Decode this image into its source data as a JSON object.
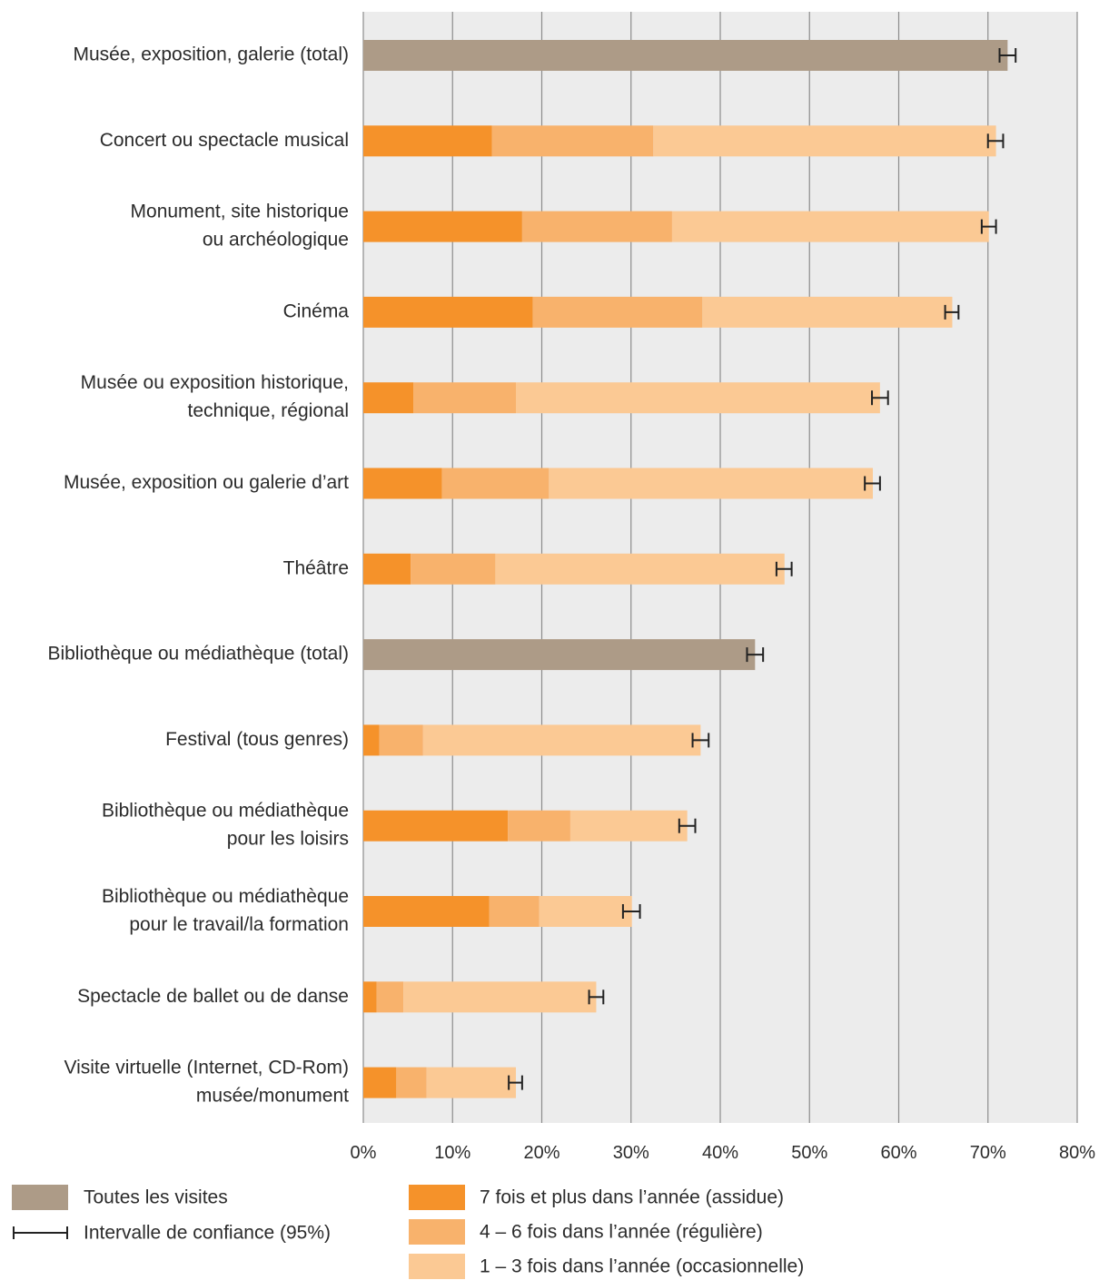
{
  "chart_data": {
    "type": "bar",
    "orientation": "horizontal",
    "stacked": true,
    "xlim": [
      0,
      80
    ],
    "x_unit": "%",
    "x_ticks": [
      "0%",
      "10%",
      "20%",
      "30%",
      "40%",
      "50%",
      "60%",
      "70%",
      "80%"
    ],
    "grid": true,
    "colors": {
      "total": "#ad9b87",
      "assidue": "#f5922a",
      "reguliere": "#f8b26c",
      "occasionnelle": "#fbc994",
      "plot_bg": "#ececec",
      "grid": "#8c8c8c",
      "error_bar": "#222222"
    },
    "categories": [
      {
        "label_lines": [
          "Musée, exposition, galerie (total)"
        ],
        "total": 72.2,
        "ci": [
          71.3,
          73.1
        ]
      },
      {
        "label_lines": [
          "Concert ou spectacle musical"
        ],
        "segments": [
          14.4,
          18.1,
          38.4
        ],
        "ci": [
          70.0,
          71.7
        ]
      },
      {
        "label_lines": [
          "Monument, site historique",
          "ou archéologique"
        ],
        "segments": [
          17.8,
          16.8,
          35.5
        ],
        "ci": [
          69.3,
          70.9
        ]
      },
      {
        "label_lines": [
          "Cinéma"
        ],
        "segments": [
          19.0,
          19.0,
          28.0
        ],
        "ci": [
          65.2,
          66.7
        ]
      },
      {
        "label_lines": [
          "Musée ou exposition historique,",
          "technique, régional"
        ],
        "segments": [
          5.6,
          11.5,
          40.8
        ],
        "ci": [
          57.0,
          58.8
        ]
      },
      {
        "label_lines": [
          "Musée, exposition ou galerie d’art"
        ],
        "segments": [
          8.8,
          12.0,
          36.3
        ],
        "ci": [
          56.2,
          57.9
        ]
      },
      {
        "label_lines": [
          "Théâtre"
        ],
        "segments": [
          5.3,
          9.5,
          32.4
        ],
        "ci": [
          46.3,
          48.0
        ]
      },
      {
        "label_lines": [
          "Bibliothèque ou médiathèque (total)"
        ],
        "total": 43.9,
        "ci": [
          43.0,
          44.8
        ]
      },
      {
        "label_lines": [
          "Festival (tous genres)"
        ],
        "segments": [
          1.8,
          4.9,
          31.1
        ],
        "ci": [
          36.9,
          38.7
        ]
      },
      {
        "label_lines": [
          "Bibliothèque ou médiathèque",
          "pour les loisirs"
        ],
        "segments": [
          16.2,
          7.0,
          13.1
        ],
        "ci": [
          35.4,
          37.2
        ]
      },
      {
        "label_lines": [
          "Bibliothèque ou médiathèque",
          "pour le travail/la formation"
        ],
        "segments": [
          14.1,
          5.6,
          10.4
        ],
        "ci": [
          29.1,
          31.0
        ]
      },
      {
        "label_lines": [
          "Spectacle de ballet ou de danse"
        ],
        "segments": [
          1.5,
          3.0,
          21.6
        ],
        "ci": [
          25.3,
          26.9
        ]
      },
      {
        "label_lines": [
          "Visite virtuelle (Internet, CD-Rom)",
          "musée/monument"
        ],
        "segments": [
          3.7,
          3.4,
          10.0
        ],
        "ci": [
          16.3,
          17.8
        ]
      }
    ],
    "legend": {
      "placement": "bottom",
      "total_label": "Toutes les visites",
      "ci_label": "Intervalle de confiance (95%)",
      "series_labels": [
        "7 fois et plus dans l’année (assidue)",
        "4 – 6 fois dans l’année (régulière)",
        "1 – 3 fois dans l’année (occasionnelle)"
      ]
    }
  }
}
